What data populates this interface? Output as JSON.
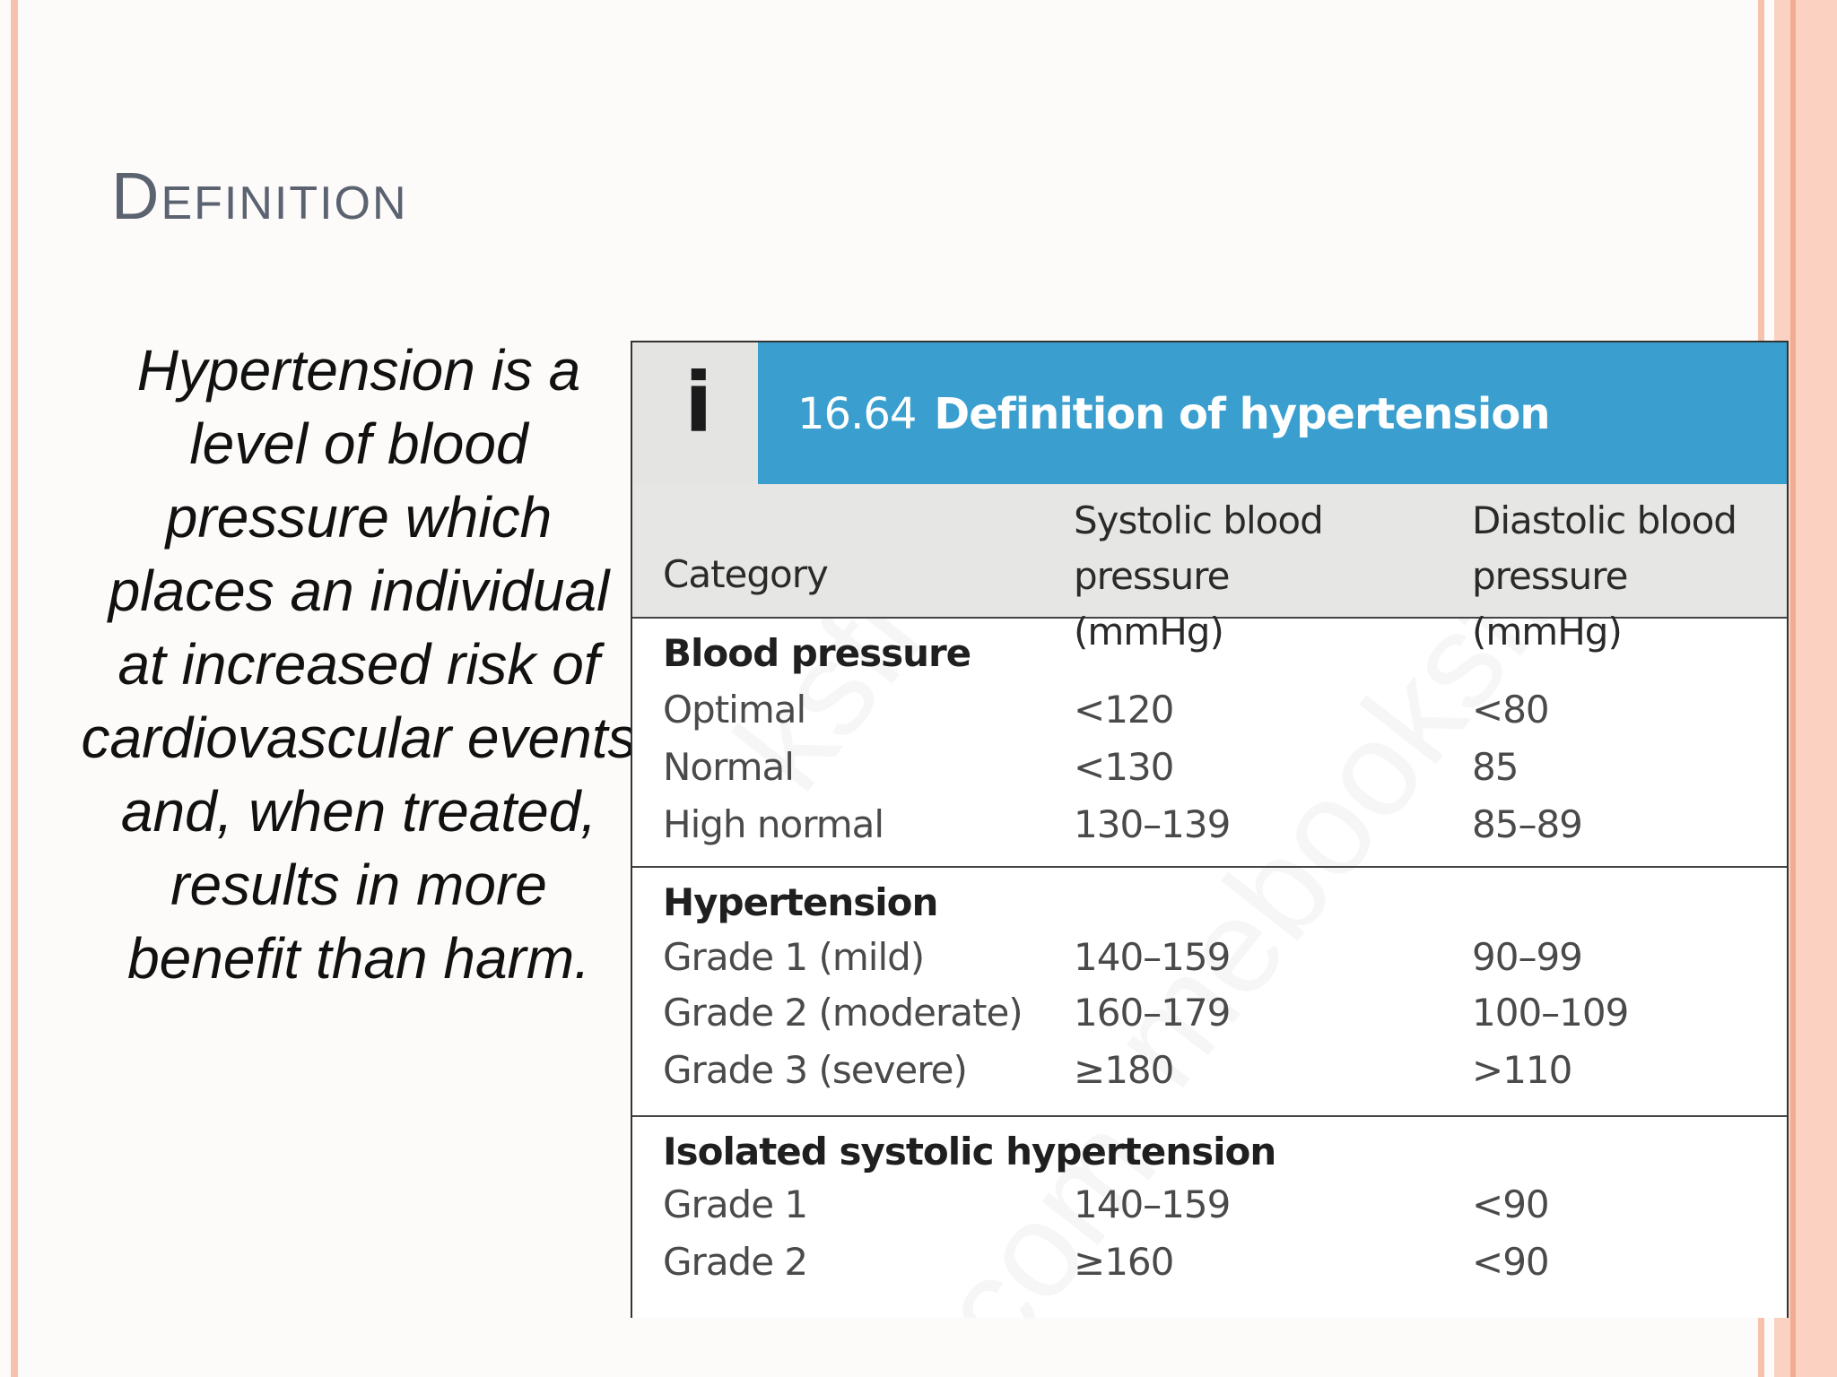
{
  "slide": {
    "title": "Definition",
    "body": "Hypertension is a level of blood pressure which places an individual at increased risk of cardiovascular events and, when treated, results in more benefit than harm."
  },
  "table": {
    "icon": "i",
    "number": "16.64",
    "title": "Definition of hypertension",
    "columns": [
      "Category",
      "Systolic blood pressure (mmHg)",
      "Diastolic blood pressure (mmHg)"
    ],
    "sections": [
      {
        "title": "Blood pressure",
        "rows": [
          [
            "Optimal",
            "<120",
            "<80"
          ],
          [
            "Normal",
            "<130",
            "85"
          ],
          [
            "High normal",
            "130–139",
            "85–89"
          ]
        ]
      },
      {
        "title": "Hypertension",
        "rows": [
          [
            "Grade 1 (mild)",
            "140–159",
            "90–99"
          ],
          [
            "Grade 2 (moderate)",
            "160–179",
            "100–109"
          ],
          [
            "Grade 3 (severe)",
            "≥180",
            ">110"
          ]
        ]
      },
      {
        "title": "Isolated systolic hypertension",
        "rows": [
          [
            "Grade 1",
            "140–159",
            "<90"
          ],
          [
            "Grade 2",
            "≥160",
            "<90"
          ]
        ]
      }
    ]
  },
  "watermark": {
    "text_1": "ksfree",
    "text_2": "mebooksfree",
    "text_3": "com"
  },
  "colors": {
    "accent_stripe": "#f7c2ad",
    "table_header": "#3a9fcf",
    "title_text": "#5b6270"
  }
}
